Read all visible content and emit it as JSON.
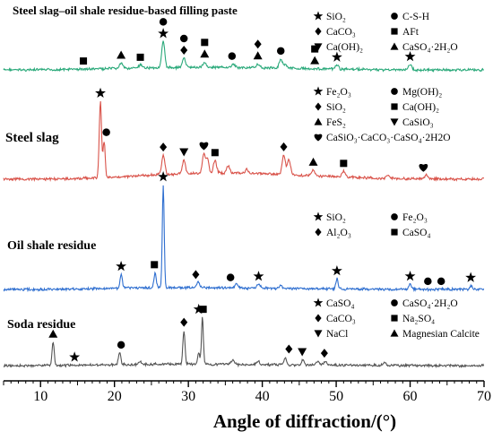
{
  "chart_data": {
    "type": "line",
    "xlabel": "Angle of diffraction/(°)",
    "xlim": [
      5,
      70
    ],
    "xticks": [
      10,
      20,
      30,
      40,
      50,
      60,
      70
    ],
    "series": [
      {
        "name": "Steel slag–oil shale residue-based filling paste",
        "color": "#2aa97a",
        "baseline": [
          [
            5,
            0
          ],
          [
            9,
            0
          ],
          [
            12,
            0.2
          ],
          [
            15,
            0.5
          ],
          [
            18,
            0.8
          ],
          [
            21,
            1.2
          ],
          [
            24,
            1.6
          ],
          [
            28,
            1.9
          ],
          [
            32,
            2
          ],
          [
            36,
            1.9
          ],
          [
            40,
            1.6
          ],
          [
            45,
            1.1
          ],
          [
            50,
            0.6
          ],
          [
            55,
            0.2
          ],
          [
            60,
            0
          ],
          [
            70,
            0
          ]
        ],
        "peaks": [
          {
            "x": 26.6,
            "h": 20,
            "w": 0.28
          },
          {
            "x": 29.4,
            "h": 7,
            "w": 0.3
          },
          {
            "x": 32.2,
            "h": 4,
            "w": 0.3
          },
          {
            "x": 20.9,
            "h": 4,
            "w": 0.3
          },
          {
            "x": 39.4,
            "h": 3,
            "w": 0.3
          },
          {
            "x": 43.1,
            "h": 3,
            "w": 0.3
          },
          {
            "x": 42.5,
            "h": 7,
            "w": 0.3
          },
          {
            "x": 50.1,
            "h": 3,
            "w": 0.3
          },
          {
            "x": 60.0,
            "h": 4,
            "w": 0.3
          },
          {
            "x": 36.1,
            "h": 2.5,
            "w": 0.3
          },
          {
            "x": 23.5,
            "h": 2,
            "w": 0.3
          }
        ],
        "markers": [
          {
            "x": 26.6,
            "shape": "star"
          },
          {
            "x": 26.6,
            "shape": "circle"
          },
          {
            "x": 29.4,
            "shape": "diamond"
          },
          {
            "x": 29.4,
            "shape": "circle"
          },
          {
            "x": 20.9,
            "shape": "triangle"
          },
          {
            "x": 23.5,
            "shape": "square"
          },
          {
            "x": 15.8,
            "shape": "square"
          },
          {
            "x": 32.2,
            "shape": "triangle"
          },
          {
            "x": 32.2,
            "shape": "square"
          },
          {
            "x": 35.9,
            "shape": "circle"
          },
          {
            "x": 39.4,
            "shape": "triangle"
          },
          {
            "x": 39.4,
            "shape": "diamond"
          },
          {
            "x": 42.5,
            "shape": "circle"
          },
          {
            "x": 47.1,
            "shape": "triangle"
          },
          {
            "x": 47.1,
            "shape": "square"
          },
          {
            "x": 50.1,
            "shape": "star"
          },
          {
            "x": 60.0,
            "shape": "star"
          }
        ],
        "legend": [
          {
            "shape": "star",
            "text": "SiO₂"
          },
          {
            "shape": "circle",
            "text": "C-S-H"
          },
          {
            "shape": "diamond",
            "text": "CaCO₃"
          },
          {
            "shape": "square",
            "text": "AFt"
          },
          {
            "shape": "triangle-down",
            "text": "Ca(OH)₂"
          },
          {
            "shape": "triangle",
            "text": "CaSO₄·2H₂O"
          }
        ]
      },
      {
        "name": "Steel slag",
        "color": "#d9534a",
        "baseline": [
          [
            5,
            0
          ],
          [
            10,
            0
          ],
          [
            15,
            0.5
          ],
          [
            20,
            1.5
          ],
          [
            25,
            3
          ],
          [
            30,
            4
          ],
          [
            35,
            4.5
          ],
          [
            40,
            4
          ],
          [
            45,
            3
          ],
          [
            50,
            1.8
          ],
          [
            55,
            0.8
          ],
          [
            60,
            0.3
          ],
          [
            70,
            0
          ]
        ],
        "peaks": [
          {
            "x": 18.1,
            "h": 55,
            "w": 0.22
          },
          {
            "x": 18.6,
            "h": 26,
            "w": 0.2
          },
          {
            "x": 26.6,
            "h": 14,
            "w": 0.3
          },
          {
            "x": 29.4,
            "h": 10,
            "w": 0.3
          },
          {
            "x": 32.1,
            "h": 14,
            "w": 0.3
          },
          {
            "x": 32.6,
            "h": 10,
            "w": 0.25
          },
          {
            "x": 33.6,
            "h": 9,
            "w": 0.3
          },
          {
            "x": 35.4,
            "h": 5,
            "w": 0.3
          },
          {
            "x": 37.9,
            "h": 3,
            "w": 0.3
          },
          {
            "x": 42.9,
            "h": 14,
            "w": 0.3
          },
          {
            "x": 43.6,
            "h": 11,
            "w": 0.3
          },
          {
            "x": 46.9,
            "h": 4,
            "w": 0.3
          },
          {
            "x": 51.0,
            "h": 4,
            "w": 0.3
          },
          {
            "x": 57.0,
            "h": 2,
            "w": 0.3
          },
          {
            "x": 62.2,
            "h": 2.5,
            "w": 0.3
          }
        ],
        "markers": [
          {
            "x": 18.1,
            "shape": "star"
          },
          {
            "x": 18.9,
            "shape": "circle"
          },
          {
            "x": 26.6,
            "shape": "diamond"
          },
          {
            "x": 29.4,
            "shape": "triangle-down"
          },
          {
            "x": 32.1,
            "shape": "heart"
          },
          {
            "x": 33.6,
            "shape": "square"
          },
          {
            "x": 42.9,
            "shape": "diamond"
          },
          {
            "x": 46.9,
            "shape": "triangle"
          },
          {
            "x": 51.0,
            "shape": "square"
          },
          {
            "x": 61.8,
            "shape": "heart"
          }
        ],
        "legend": [
          {
            "shape": "star",
            "text": "Fe₂O₃"
          },
          {
            "shape": "circle",
            "text": "Mg(OH)₂"
          },
          {
            "shape": "diamond",
            "text": "SiO₂"
          },
          {
            "shape": "square",
            "text": "Ca(OH)₂"
          },
          {
            "shape": "triangle",
            "text": "FeS₂"
          },
          {
            "shape": "triangle-down",
            "text": "CaSiO₃"
          },
          {
            "shape": "heart",
            "text": "CaSiO₃·CaCO₃·CaSO₄·2H2O"
          }
        ]
      },
      {
        "name": "Oil shale residue",
        "color": "#2f6fd0",
        "baseline": [
          [
            5,
            0
          ],
          [
            10,
            0
          ],
          [
            15,
            0.4
          ],
          [
            20,
            0.9
          ],
          [
            25,
            1.3
          ],
          [
            30,
            1.5
          ],
          [
            35,
            1.3
          ],
          [
            40,
            1
          ],
          [
            45,
            0.7
          ],
          [
            50,
            0.4
          ],
          [
            60,
            0.1
          ],
          [
            70,
            0
          ]
        ],
        "peaks": [
          {
            "x": 26.6,
            "h": 82,
            "w": 0.18
          },
          {
            "x": 20.9,
            "h": 11,
            "w": 0.22
          },
          {
            "x": 25.5,
            "h": 12,
            "w": 0.22
          },
          {
            "x": 31.3,
            "h": 4,
            "w": 0.3
          },
          {
            "x": 36.5,
            "h": 3,
            "w": 0.3
          },
          {
            "x": 39.5,
            "h": 3,
            "w": 0.3
          },
          {
            "x": 50.1,
            "h": 8,
            "w": 0.22
          },
          {
            "x": 60.0,
            "h": 4,
            "w": 0.25
          },
          {
            "x": 68.2,
            "h": 3,
            "w": 0.25
          },
          {
            "x": 42.5,
            "h": 2,
            "w": 0.3
          }
        ],
        "markers": [
          {
            "x": 26.6,
            "shape": "star"
          },
          {
            "x": 20.9,
            "shape": "star"
          },
          {
            "x": 25.4,
            "shape": "square"
          },
          {
            "x": 31.0,
            "shape": "diamond"
          },
          {
            "x": 35.7,
            "shape": "circle"
          },
          {
            "x": 39.5,
            "shape": "star"
          },
          {
            "x": 50.1,
            "shape": "star"
          },
          {
            "x": 60.0,
            "shape": "star"
          },
          {
            "x": 62.4,
            "shape": "circle"
          },
          {
            "x": 64.2,
            "shape": "circle"
          },
          {
            "x": 68.2,
            "shape": "star"
          }
        ],
        "legend": [
          {
            "shape": "star",
            "text": "SiO₂"
          },
          {
            "shape": "circle",
            "text": "Fe₂O₃"
          },
          {
            "shape": "diamond",
            "text": "Al₂O₃"
          },
          {
            "shape": "square",
            "text": "CaSO₄"
          }
        ]
      },
      {
        "name": "Soda residue",
        "color": "#555555",
        "baseline": [
          [
            5,
            0
          ],
          [
            10,
            0
          ],
          [
            15,
            0.3
          ],
          [
            20,
            0.7
          ],
          [
            25,
            1
          ],
          [
            30,
            1.2
          ],
          [
            35,
            1
          ],
          [
            40,
            0.7
          ],
          [
            50,
            0.3
          ],
          [
            60,
            0.1
          ],
          [
            70,
            0
          ]
        ],
        "peaks": [
          {
            "x": 11.7,
            "h": 18,
            "w": 0.2
          },
          {
            "x": 20.7,
            "h": 9,
            "w": 0.22
          },
          {
            "x": 23.4,
            "h": 2,
            "w": 0.3
          },
          {
            "x": 29.4,
            "h": 26,
            "w": 0.2
          },
          {
            "x": 31.4,
            "h": 9,
            "w": 0.2
          },
          {
            "x": 31.9,
            "h": 36,
            "w": 0.18
          },
          {
            "x": 36.0,
            "h": 3,
            "w": 0.3
          },
          {
            "x": 39.4,
            "h": 3,
            "w": 0.3
          },
          {
            "x": 43.1,
            "h": 6,
            "w": 0.22
          },
          {
            "x": 45.5,
            "h": 4,
            "w": 0.25
          },
          {
            "x": 47.5,
            "h": 3,
            "w": 0.3
          },
          {
            "x": 48.5,
            "h": 3,
            "w": 0.3
          },
          {
            "x": 56.5,
            "h": 2,
            "w": 0.3
          }
        ],
        "markers": [
          {
            "x": 11.7,
            "shape": "triangle"
          },
          {
            "x": 14.6,
            "shape": "star"
          },
          {
            "x": 20.9,
            "shape": "circle"
          },
          {
            "x": 29.4,
            "shape": "diamond"
          },
          {
            "x": 31.4,
            "shape": "star"
          },
          {
            "x": 32.0,
            "shape": "square"
          },
          {
            "x": 43.6,
            "shape": "diamond"
          },
          {
            "x": 45.4,
            "shape": "triangle-down"
          },
          {
            "x": 48.4,
            "shape": "diamond"
          }
        ],
        "legend": [
          {
            "shape": "star",
            "text": "CaSO₄"
          },
          {
            "shape": "circle",
            "text": "CaSO₄·2H₂O"
          },
          {
            "shape": "diamond",
            "text": "CaCO₃"
          },
          {
            "shape": "square",
            "text": "Na₂SO₄"
          },
          {
            "shape": "triangle-down",
            "text": "NaCl"
          },
          {
            "shape": "triangle",
            "text": "Magnesian Calcite"
          }
        ]
      }
    ]
  }
}
